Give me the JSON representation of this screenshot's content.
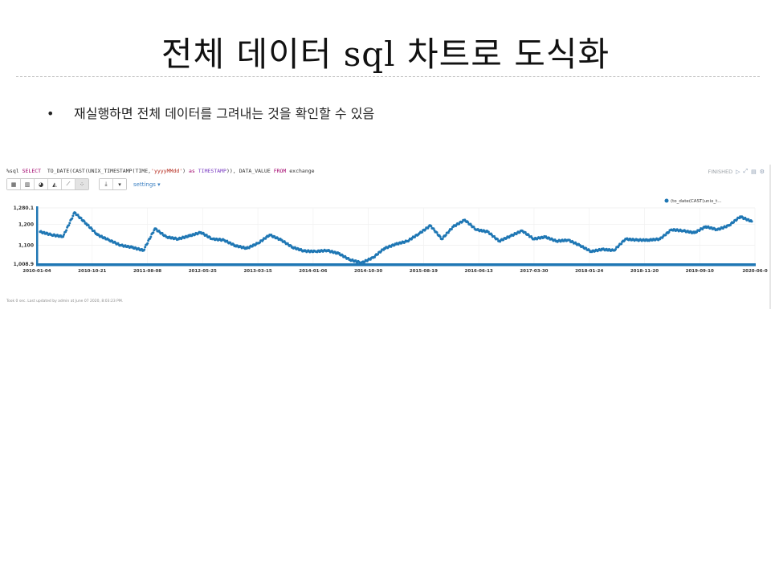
{
  "slide": {
    "title": "전체 데이터 sql 차트로 도식화",
    "bullet": "재실행하면 전체 데이터를 그려내는 것을 확인할 수 있음"
  },
  "paragraph": {
    "code_prefix": "%sql ",
    "code_kw_select": "SELECT",
    "code_part1": "  TO_DATE(CAST(UNIX_TIMESTAMP(TIME,",
    "code_str": "'yyyyMMdd'",
    "code_part2": ") ",
    "code_kw_as": "as",
    "code_part3": " ",
    "code_kw_ts": "TIMESTAMP",
    "code_part4": ")), DATA_VALUE ",
    "code_kw_from": "FROM",
    "code_part5": " exchange",
    "status": "FINISHED",
    "settings_label": "settings ▾",
    "footer": "Took 0 sec. Last updated by admin at June 07 2020, 8:03:23 PM.",
    "toolbar_icons": [
      "table-icon",
      "bar-chart-icon",
      "pie-chart-icon",
      "area-chart-icon",
      "line-chart-icon",
      "scatter-chart-icon"
    ],
    "accent_color": "#1f77b4"
  },
  "chart_data": {
    "type": "scatter",
    "title": "",
    "legend": "(to_date(CAST(unix_t...",
    "legend_position": "top-right",
    "ylim": [
      1008.9,
      1280.1
    ],
    "y_ticks": [
      "1,280.1",
      "1,200",
      "1,100",
      "1,008.9"
    ],
    "y_tick_values": [
      1280.1,
      1200,
      1100,
      1008.9
    ],
    "x_ticks": [
      "2010-01-04",
      "2010-10-21",
      "2011-08-08",
      "2012-05-25",
      "2013-03-15",
      "2014-01-06",
      "2014-10-30",
      "2015-08-19",
      "2016-06-13",
      "2017-03-30",
      "2018-01-24",
      "2018-11-20",
      "2019-09-10",
      "2020-06-0"
    ],
    "x": [
      "2010-01",
      "2010-03",
      "2010-05",
      "2010-07",
      "2010-09",
      "2010-11",
      "2011-01",
      "2011-03",
      "2011-05",
      "2011-07",
      "2011-09",
      "2011-11",
      "2012-01",
      "2012-03",
      "2012-05",
      "2012-07",
      "2012-09",
      "2012-11",
      "2013-01",
      "2013-03",
      "2013-05",
      "2013-07",
      "2013-09",
      "2013-11",
      "2014-01",
      "2014-03",
      "2014-05",
      "2014-07",
      "2014-09",
      "2014-11",
      "2015-01",
      "2015-03",
      "2015-05",
      "2015-07",
      "2015-09",
      "2015-11",
      "2016-01",
      "2016-03",
      "2016-05",
      "2016-07",
      "2016-09",
      "2016-11",
      "2017-01",
      "2017-03",
      "2017-05",
      "2017-07",
      "2017-09",
      "2017-11",
      "2018-01",
      "2018-03",
      "2018-05",
      "2018-07",
      "2018-09",
      "2018-11",
      "2019-01",
      "2019-03",
      "2019-05",
      "2019-07",
      "2019-09",
      "2019-11",
      "2020-01",
      "2020-03",
      "2020-05"
    ],
    "series": [
      {
        "name": "(to_date(CAST(unix_t...",
        "values": [
          1165,
          1150,
          1142,
          1258,
          1205,
          1150,
          1125,
          1100,
          1090,
          1075,
          1180,
          1140,
          1130,
          1145,
          1162,
          1130,
          1125,
          1098,
          1085,
          1110,
          1150,
          1125,
          1090,
          1072,
          1070,
          1075,
          1060,
          1030,
          1015,
          1040,
          1085,
          1105,
          1120,
          1155,
          1195,
          1130,
          1190,
          1222,
          1175,
          1165,
          1120,
          1145,
          1170,
          1130,
          1140,
          1120,
          1125,
          1100,
          1070,
          1080,
          1075,
          1130,
          1125,
          1125,
          1130,
          1175,
          1170,
          1160,
          1190,
          1175,
          1195,
          1238,
          1215
        ]
      }
    ]
  }
}
